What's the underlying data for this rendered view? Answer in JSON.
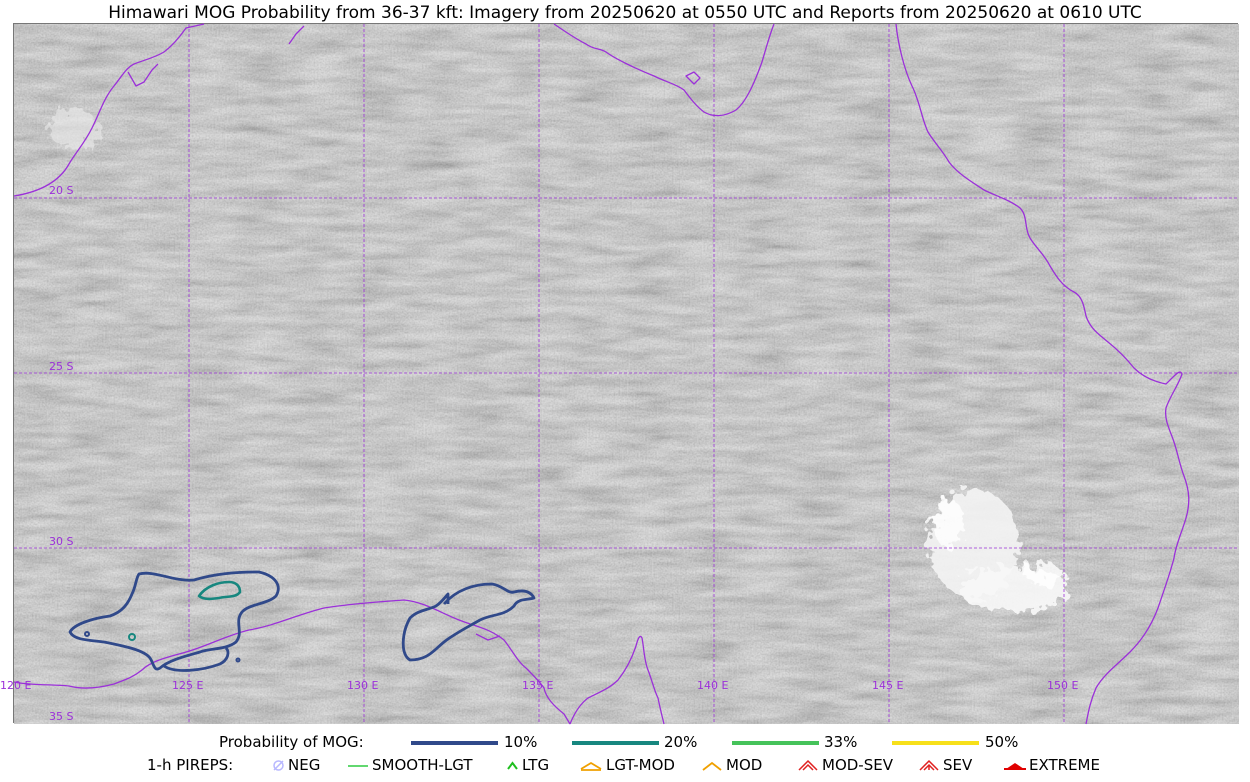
{
  "title": "Himawari MOG Probability from 36-37 kft: Imagery from 20250620 at 0550 UTC and Reports from 20250620 at 0610 UTC",
  "map": {
    "latitude_labels": [
      "20 S",
      "25 S",
      "30 S",
      "35 S"
    ],
    "longitude_labels": [
      "120 E",
      "125 E",
      "130 E",
      "135 E",
      "140 E",
      "145 E",
      "150 E"
    ],
    "colors": {
      "coastline": "#9b30d9",
      "grid": "#9b30d9",
      "contour_10": "#30498a",
      "contour_20": "#17877f",
      "contour_33": "#45c35a",
      "contour_50": "#f7e01a"
    }
  },
  "legend": {
    "probability": {
      "label": "Probability of MOG:",
      "items": [
        {
          "text": "10%",
          "color": "#30498a"
        },
        {
          "text": "20%",
          "color": "#17877f"
        },
        {
          "text": "33%",
          "color": "#45c35a"
        },
        {
          "text": "50%",
          "color": "#f7e01a"
        }
      ]
    },
    "pireps": {
      "label": "1-h PIREPS:",
      "items": [
        {
          "text": "NEG",
          "icon": "neg-icon",
          "color": "#b8b8ff"
        },
        {
          "text": "SMOOTH-LGT",
          "icon": "smooth-lgt-icon",
          "color": "#2ecc40"
        },
        {
          "text": "LTG",
          "icon": "ltg-icon",
          "color": "#1fbf1f"
        },
        {
          "text": "LGT-MOD",
          "icon": "lgt-mod-icon",
          "color": "#f0a000"
        },
        {
          "text": "MOD",
          "icon": "mod-icon",
          "color": "#f0a000"
        },
        {
          "text": "MOD-SEV",
          "icon": "mod-sev-icon",
          "color": "#e02020"
        },
        {
          "text": "SEV",
          "icon": "sev-icon",
          "color": "#e02020"
        },
        {
          "text": "EXTREME",
          "icon": "extreme-icon",
          "color": "#e00000"
        }
      ]
    }
  }
}
